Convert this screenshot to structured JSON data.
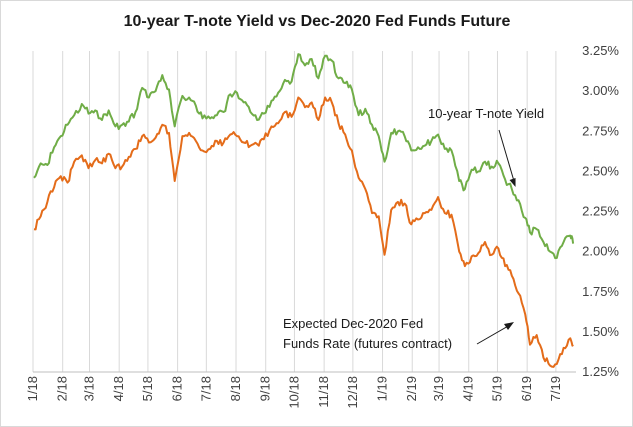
{
  "chart_data": {
    "type": "line",
    "title": "10-year T-note Yield vs Dec-2020 Fed Funds Future",
    "xlabel": "",
    "ylabel": "",
    "x_ticks": [
      "1/18",
      "2/18",
      "3/18",
      "4/18",
      "5/18",
      "6/18",
      "7/18",
      "8/18",
      "9/18",
      "10/18",
      "11/18",
      "12/18",
      "1/19",
      "2/19",
      "3/19",
      "4/19",
      "5/19",
      "6/19",
      "7/19"
    ],
    "y_ticks": [
      "1.25%",
      "1.50%",
      "1.75%",
      "2.00%",
      "2.25%",
      "2.50%",
      "2.75%",
      "3.00%",
      "3.25%"
    ],
    "ylim": [
      1.25,
      3.25
    ],
    "grid": "vertical",
    "y_axis_side": "right",
    "series": [
      {
        "name": "10-year T-note Yield",
        "color": "#70ad47",
        "points": [
          [
            "2018-01-02",
            2.46
          ],
          [
            "2018-01-09",
            2.55
          ],
          [
            "2018-01-16",
            2.54
          ],
          [
            "2018-01-23",
            2.65
          ],
          [
            "2018-01-30",
            2.72
          ],
          [
            "2018-02-06",
            2.79
          ],
          [
            "2018-02-13",
            2.85
          ],
          [
            "2018-02-21",
            2.92
          ],
          [
            "2018-02-28",
            2.86
          ],
          [
            "2018-03-07",
            2.88
          ],
          [
            "2018-03-14",
            2.82
          ],
          [
            "2018-03-21",
            2.88
          ],
          [
            "2018-03-28",
            2.78
          ],
          [
            "2018-04-04",
            2.79
          ],
          [
            "2018-04-11",
            2.81
          ],
          [
            "2018-04-18",
            2.87
          ],
          [
            "2018-04-25",
            3.02
          ],
          [
            "2018-05-02",
            2.96
          ],
          [
            "2018-05-09",
            3.0
          ],
          [
            "2018-05-16",
            3.1
          ],
          [
            "2018-05-23",
            3.01
          ],
          [
            "2018-05-29",
            2.78
          ],
          [
            "2018-06-06",
            2.97
          ],
          [
            "2018-06-13",
            2.96
          ],
          [
            "2018-06-20",
            2.91
          ],
          [
            "2018-06-27",
            2.83
          ],
          [
            "2018-07-05",
            2.83
          ],
          [
            "2018-07-12",
            2.85
          ],
          [
            "2018-07-19",
            2.87
          ],
          [
            "2018-07-26",
            2.98
          ],
          [
            "2018-08-02",
            2.99
          ],
          [
            "2018-08-09",
            2.93
          ],
          [
            "2018-08-16",
            2.87
          ],
          [
            "2018-08-23",
            2.82
          ],
          [
            "2018-08-30",
            2.86
          ],
          [
            "2018-09-07",
            2.94
          ],
          [
            "2018-09-14",
            2.99
          ],
          [
            "2018-09-21",
            3.07
          ],
          [
            "2018-09-28",
            3.06
          ],
          [
            "2018-10-05",
            3.23
          ],
          [
            "2018-10-12",
            3.16
          ],
          [
            "2018-10-19",
            3.2
          ],
          [
            "2018-10-26",
            3.08
          ],
          [
            "2018-11-02",
            3.22
          ],
          [
            "2018-11-09",
            3.19
          ],
          [
            "2018-11-16",
            3.08
          ],
          [
            "2018-11-23",
            3.05
          ],
          [
            "2018-11-30",
            3.01
          ],
          [
            "2018-12-07",
            2.85
          ],
          [
            "2018-12-14",
            2.89
          ],
          [
            "2018-12-21",
            2.79
          ],
          [
            "2018-12-28",
            2.72
          ],
          [
            "2019-01-03",
            2.56
          ],
          [
            "2019-01-10",
            2.74
          ],
          [
            "2019-01-17",
            2.75
          ],
          [
            "2019-01-24",
            2.72
          ],
          [
            "2019-01-31",
            2.63
          ],
          [
            "2019-02-07",
            2.65
          ],
          [
            "2019-02-14",
            2.66
          ],
          [
            "2019-02-21",
            2.69
          ],
          [
            "2019-02-28",
            2.73
          ],
          [
            "2019-03-07",
            2.64
          ],
          [
            "2019-03-14",
            2.63
          ],
          [
            "2019-03-22",
            2.44
          ],
          [
            "2019-03-28",
            2.39
          ],
          [
            "2019-04-04",
            2.51
          ],
          [
            "2019-04-11",
            2.5
          ],
          [
            "2019-04-18",
            2.56
          ],
          [
            "2019-04-25",
            2.53
          ],
          [
            "2019-05-02",
            2.55
          ],
          [
            "2019-05-09",
            2.45
          ],
          [
            "2019-05-16",
            2.39
          ],
          [
            "2019-05-23",
            2.32
          ],
          [
            "2019-05-30",
            2.21
          ],
          [
            "2019-06-04",
            2.12
          ],
          [
            "2019-06-11",
            2.14
          ],
          [
            "2019-06-18",
            2.06
          ],
          [
            "2019-06-25",
            2.0
          ],
          [
            "2019-07-02",
            1.96
          ],
          [
            "2019-07-09",
            2.06
          ],
          [
            "2019-07-16",
            2.1
          ],
          [
            "2019-07-19",
            2.05
          ]
        ]
      },
      {
        "name": "Expected Dec-2020 Fed Funds Rate (futures contract)",
        "color": "#e46c1a",
        "points": [
          [
            "2018-01-02",
            2.14
          ],
          [
            "2018-01-09",
            2.22
          ],
          [
            "2018-01-16",
            2.31
          ],
          [
            "2018-01-23",
            2.4
          ],
          [
            "2018-01-30",
            2.47
          ],
          [
            "2018-02-06",
            2.43
          ],
          [
            "2018-02-13",
            2.56
          ],
          [
            "2018-02-21",
            2.6
          ],
          [
            "2018-02-28",
            2.52
          ],
          [
            "2018-03-07",
            2.57
          ],
          [
            "2018-03-14",
            2.55
          ],
          [
            "2018-03-21",
            2.61
          ],
          [
            "2018-03-28",
            2.52
          ],
          [
            "2018-04-04",
            2.53
          ],
          [
            "2018-04-11",
            2.59
          ],
          [
            "2018-04-18",
            2.64
          ],
          [
            "2018-04-25",
            2.72
          ],
          [
            "2018-05-02",
            2.68
          ],
          [
            "2018-05-09",
            2.71
          ],
          [
            "2018-05-16",
            2.79
          ],
          [
            "2018-05-23",
            2.74
          ],
          [
            "2018-05-29",
            2.44
          ],
          [
            "2018-06-06",
            2.72
          ],
          [
            "2018-06-13",
            2.74
          ],
          [
            "2018-06-20",
            2.69
          ],
          [
            "2018-06-27",
            2.63
          ],
          [
            "2018-07-05",
            2.64
          ],
          [
            "2018-07-12",
            2.69
          ],
          [
            "2018-07-19",
            2.68
          ],
          [
            "2018-07-26",
            2.73
          ],
          [
            "2018-08-02",
            2.72
          ],
          [
            "2018-08-09",
            2.68
          ],
          [
            "2018-08-16",
            2.66
          ],
          [
            "2018-08-23",
            2.67
          ],
          [
            "2018-08-30",
            2.7
          ],
          [
            "2018-09-07",
            2.78
          ],
          [
            "2018-09-14",
            2.8
          ],
          [
            "2018-09-21",
            2.87
          ],
          [
            "2018-09-28",
            2.84
          ],
          [
            "2018-10-05",
            2.96
          ],
          [
            "2018-10-12",
            2.9
          ],
          [
            "2018-10-19",
            2.93
          ],
          [
            "2018-10-26",
            2.82
          ],
          [
            "2018-11-02",
            2.96
          ],
          [
            "2018-11-09",
            2.93
          ],
          [
            "2018-11-16",
            2.8
          ],
          [
            "2018-11-23",
            2.73
          ],
          [
            "2018-11-30",
            2.63
          ],
          [
            "2018-12-07",
            2.46
          ],
          [
            "2018-12-14",
            2.39
          ],
          [
            "2018-12-21",
            2.24
          ],
          [
            "2018-12-28",
            2.22
          ],
          [
            "2019-01-03",
            1.98
          ],
          [
            "2019-01-10",
            2.26
          ],
          [
            "2019-01-17",
            2.31
          ],
          [
            "2019-01-24",
            2.3
          ],
          [
            "2019-01-31",
            2.17
          ],
          [
            "2019-02-07",
            2.2
          ],
          [
            "2019-02-14",
            2.24
          ],
          [
            "2019-02-21",
            2.26
          ],
          [
            "2019-02-28",
            2.34
          ],
          [
            "2019-03-07",
            2.24
          ],
          [
            "2019-03-14",
            2.23
          ],
          [
            "2019-03-22",
            2.0
          ],
          [
            "2019-03-28",
            1.91
          ],
          [
            "2019-04-04",
            1.97
          ],
          [
            "2019-04-11",
            1.99
          ],
          [
            "2019-04-18",
            2.06
          ],
          [
            "2019-04-25",
            1.98
          ],
          [
            "2019-05-02",
            2.02
          ],
          [
            "2019-05-09",
            1.91
          ],
          [
            "2019-05-16",
            1.85
          ],
          [
            "2019-05-23",
            1.74
          ],
          [
            "2019-05-30",
            1.61
          ],
          [
            "2019-06-04",
            1.42
          ],
          [
            "2019-06-11",
            1.48
          ],
          [
            "2019-06-18",
            1.34
          ],
          [
            "2019-06-25",
            1.29
          ],
          [
            "2019-07-02",
            1.3
          ],
          [
            "2019-07-09",
            1.4
          ],
          [
            "2019-07-16",
            1.46
          ],
          [
            "2019-07-19",
            1.42
          ]
        ]
      }
    ],
    "annotations": [
      {
        "text": "10-year T-note Yield",
        "target": [
          "2019-05-23",
          2.39
        ]
      },
      {
        "text_lines": [
          "Expected Dec-2020 Fed",
          "Funds Rate (futures contract)"
        ],
        "target": [
          "2019-05-30",
          1.55
        ]
      }
    ]
  }
}
